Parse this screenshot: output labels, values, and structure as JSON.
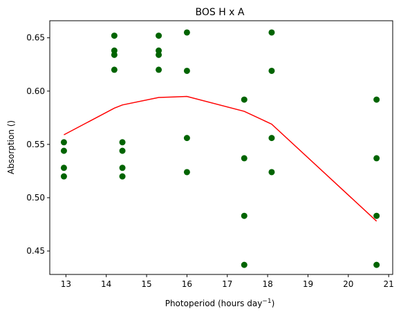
{
  "chart_data": {
    "type": "scatter",
    "title": "BOS H x A",
    "xlabel": "Photoperiod (hours day",
    "xlabel_superscript": "−1",
    "xlabel_suffix": ")",
    "ylabel": "Absorption ()",
    "xlim": [
      12.6,
      21.1
    ],
    "ylim": [
      0.428,
      0.666
    ],
    "xticks": [
      13,
      14,
      15,
      16,
      17,
      18,
      19,
      20,
      21
    ],
    "yticks": [
      0.45,
      0.5,
      0.55,
      0.6,
      0.65
    ],
    "ytick_labels": [
      "0.45",
      "0.50",
      "0.55",
      "0.60",
      "0.65"
    ],
    "grid": false,
    "series": [
      {
        "type": "scatter",
        "color": "#006400",
        "points": [
          [
            12.95,
            0.552
          ],
          [
            12.95,
            0.544
          ],
          [
            12.95,
            0.528
          ],
          [
            12.95,
            0.52
          ],
          [
            14.2,
            0.652
          ],
          [
            14.2,
            0.638
          ],
          [
            14.2,
            0.634
          ],
          [
            14.2,
            0.62
          ],
          [
            14.4,
            0.552
          ],
          [
            14.4,
            0.544
          ],
          [
            14.4,
            0.528
          ],
          [
            14.4,
            0.52
          ],
          [
            15.3,
            0.652
          ],
          [
            15.3,
            0.638
          ],
          [
            15.3,
            0.634
          ],
          [
            15.3,
            0.62
          ],
          [
            16.0,
            0.655
          ],
          [
            16.0,
            0.619
          ],
          [
            16.0,
            0.556
          ],
          [
            16.0,
            0.524
          ],
          [
            17.42,
            0.592
          ],
          [
            17.42,
            0.537
          ],
          [
            17.42,
            0.483
          ],
          [
            17.42,
            0.437
          ],
          [
            18.1,
            0.655
          ],
          [
            18.1,
            0.619
          ],
          [
            18.1,
            0.556
          ],
          [
            18.1,
            0.524
          ],
          [
            20.7,
            0.592
          ],
          [
            20.7,
            0.537
          ],
          [
            20.7,
            0.483
          ],
          [
            20.7,
            0.437
          ]
        ]
      },
      {
        "type": "line",
        "color": "#ff0000",
        "points": [
          [
            12.95,
            0.559
          ],
          [
            14.2,
            0.584
          ],
          [
            14.4,
            0.587
          ],
          [
            15.3,
            0.594
          ],
          [
            16.0,
            0.595
          ],
          [
            17.42,
            0.581
          ],
          [
            18.1,
            0.569
          ],
          [
            20.7,
            0.478
          ]
        ]
      }
    ]
  }
}
